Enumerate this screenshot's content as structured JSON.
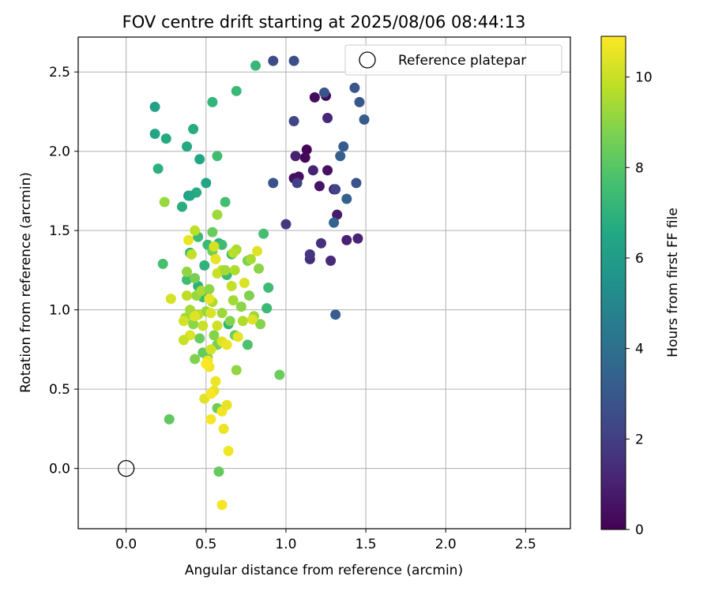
{
  "chart_data": {
    "type": "scatter",
    "title": "FOV centre drift starting at 2025/08/06 08:44:13",
    "xlabel": "Angular distance from reference (arcmin)",
    "ylabel": "Rotation from reference (arcmin)",
    "xlim": [
      -0.3,
      2.78
    ],
    "ylim": [
      -0.38,
      2.72
    ],
    "xticks": [
      0.0,
      0.5,
      1.0,
      1.5,
      2.0,
      2.5
    ],
    "yticks": [
      0.0,
      0.5,
      1.0,
      1.5,
      2.0,
      2.5
    ],
    "xtick_labels": [
      "0.0",
      "0.5",
      "1.0",
      "1.5",
      "2.0",
      "2.5"
    ],
    "ytick_labels": [
      "0.0",
      "0.5",
      "1.0",
      "1.5",
      "2.0",
      "2.5"
    ],
    "grid": true,
    "legend": {
      "position": "top-right",
      "entries": [
        "Reference platepar"
      ]
    },
    "reference_point": {
      "label": "Reference platepar",
      "x": 0.0,
      "y": 0.0
    },
    "colorbar": {
      "label": "Hours from first FF file",
      "min": 0,
      "max": 10.9,
      "ticks": [
        0,
        2,
        4,
        6,
        8,
        10
      ],
      "tick_labels": [
        "0",
        "2",
        "4",
        "6",
        "8",
        "10"
      ],
      "colormap": "viridis"
    },
    "points": [
      {
        "x": 1.13,
        "y": 2.01,
        "h": 0.1
      },
      {
        "x": 1.12,
        "y": 1.96,
        "h": 0.2
      },
      {
        "x": 1.18,
        "y": 2.34,
        "h": 0.3
      },
      {
        "x": 1.25,
        "y": 2.35,
        "h": 0.2
      },
      {
        "x": 1.08,
        "y": 1.84,
        "h": 0.4
      },
      {
        "x": 1.05,
        "y": 1.83,
        "h": 0.5
      },
      {
        "x": 1.21,
        "y": 1.78,
        "h": 0.6
      },
      {
        "x": 1.26,
        "y": 1.88,
        "h": 0.5
      },
      {
        "x": 1.3,
        "y": 1.76,
        "h": 0.7
      },
      {
        "x": 1.32,
        "y": 1.6,
        "h": 0.8
      },
      {
        "x": 1.06,
        "y": 1.97,
        "h": 1.0
      },
      {
        "x": 1.17,
        "y": 1.88,
        "h": 1.1
      },
      {
        "x": 1.26,
        "y": 2.21,
        "h": 1.2
      },
      {
        "x": 1.38,
        "y": 1.44,
        "h": 1.0
      },
      {
        "x": 1.45,
        "y": 1.45,
        "h": 1.1
      },
      {
        "x": 1.28,
        "y": 1.31,
        "h": 1.3
      },
      {
        "x": 1.15,
        "y": 1.32,
        "h": 1.4
      },
      {
        "x": 1.22,
        "y": 1.42,
        "h": 1.5
      },
      {
        "x": 1.15,
        "y": 1.35,
        "h": 1.7
      },
      {
        "x": 1.0,
        "y": 1.54,
        "h": 1.8
      },
      {
        "x": 1.07,
        "y": 1.8,
        "h": 2.0
      },
      {
        "x": 1.31,
        "y": 1.76,
        "h": 2.2
      },
      {
        "x": 1.05,
        "y": 2.19,
        "h": 2.3
      },
      {
        "x": 0.92,
        "y": 2.57,
        "h": 2.5
      },
      {
        "x": 1.05,
        "y": 2.57,
        "h": 2.6
      },
      {
        "x": 0.92,
        "y": 1.8,
        "h": 2.7
      },
      {
        "x": 1.44,
        "y": 1.8,
        "h": 2.8
      },
      {
        "x": 1.24,
        "y": 2.37,
        "h": 2.9
      },
      {
        "x": 1.43,
        "y": 2.4,
        "h": 2.9
      },
      {
        "x": 1.46,
        "y": 2.31,
        "h": 3.0
      },
      {
        "x": 1.49,
        "y": 2.2,
        "h": 3.1
      },
      {
        "x": 1.36,
        "y": 2.03,
        "h": 3.2
      },
      {
        "x": 1.34,
        "y": 1.97,
        "h": 3.3
      },
      {
        "x": 1.38,
        "y": 1.7,
        "h": 3.4
      },
      {
        "x": 1.3,
        "y": 1.55,
        "h": 3.5
      },
      {
        "x": 1.31,
        "y": 0.97,
        "h": 3.2
      },
      {
        "x": 0.39,
        "y": 1.72,
        "h": 5.8
      },
      {
        "x": 0.18,
        "y": 2.28,
        "h": 6.2
      },
      {
        "x": 0.18,
        "y": 2.11,
        "h": 6.4
      },
      {
        "x": 0.25,
        "y": 2.08,
        "h": 6.6
      },
      {
        "x": 0.2,
        "y": 1.89,
        "h": 6.9
      },
      {
        "x": 0.42,
        "y": 2.14,
        "h": 6.7
      },
      {
        "x": 0.38,
        "y": 2.03,
        "h": 6.6
      },
      {
        "x": 0.46,
        "y": 1.95,
        "h": 6.5
      },
      {
        "x": 0.5,
        "y": 1.8,
        "h": 6.4
      },
      {
        "x": 0.44,
        "y": 1.74,
        "h": 6.7
      },
      {
        "x": 0.4,
        "y": 1.72,
        "h": 6.5
      },
      {
        "x": 0.35,
        "y": 1.65,
        "h": 6.8
      },
      {
        "x": 0.54,
        "y": 2.31,
        "h": 7.1
      },
      {
        "x": 0.69,
        "y": 2.38,
        "h": 7.3
      },
      {
        "x": 0.81,
        "y": 2.54,
        "h": 7.2
      },
      {
        "x": 0.57,
        "y": 1.97,
        "h": 7.5
      },
      {
        "x": 0.62,
        "y": 1.68,
        "h": 7.6
      },
      {
        "x": 0.45,
        "y": 1.46,
        "h": 7.4
      },
      {
        "x": 0.51,
        "y": 1.41,
        "h": 7.3
      },
      {
        "x": 0.58,
        "y": 1.42,
        "h": 7.0
      },
      {
        "x": 0.6,
        "y": 1.41,
        "h": 7.5
      },
      {
        "x": 0.66,
        "y": 1.35,
        "h": 7.6
      },
      {
        "x": 0.4,
        "y": 1.36,
        "h": 7.1
      },
      {
        "x": 0.23,
        "y": 1.29,
        "h": 7.7
      },
      {
        "x": 0.49,
        "y": 1.28,
        "h": 7.0
      },
      {
        "x": 0.63,
        "y": 1.22,
        "h": 7.3
      },
      {
        "x": 0.38,
        "y": 1.19,
        "h": 7.5
      },
      {
        "x": 0.45,
        "y": 1.15,
        "h": 6.9
      },
      {
        "x": 0.86,
        "y": 1.48,
        "h": 7.6
      },
      {
        "x": 0.89,
        "y": 1.14,
        "h": 7.5
      },
      {
        "x": 0.88,
        "y": 1.01,
        "h": 7.3
      },
      {
        "x": 0.64,
        "y": 0.91,
        "h": 7.0
      },
      {
        "x": 0.48,
        "y": 1.08,
        "h": 7.2
      },
      {
        "x": 0.76,
        "y": 0.78,
        "h": 7.8
      },
      {
        "x": 0.54,
        "y": 1.37,
        "h": 8.6
      },
      {
        "x": 0.54,
        "y": 1.49,
        "h": 8.4
      },
      {
        "x": 0.57,
        "y": 1.6,
        "h": 9.3
      },
      {
        "x": 0.24,
        "y": 1.68,
        "h": 9.2
      },
      {
        "x": 0.27,
        "y": 0.31,
        "h": 8.2
      },
      {
        "x": 0.58,
        "y": -0.02,
        "h": 8.3
      },
      {
        "x": 0.57,
        "y": 0.38,
        "h": 8.5
      },
      {
        "x": 0.96,
        "y": 0.59,
        "h": 8.4
      },
      {
        "x": 0.69,
        "y": 0.62,
        "h": 9.1
      },
      {
        "x": 0.51,
        "y": 0.7,
        "h": 8.7
      },
      {
        "x": 0.48,
        "y": 0.73,
        "h": 8.3
      },
      {
        "x": 0.43,
        "y": 0.69,
        "h": 8.8
      },
      {
        "x": 0.46,
        "y": 0.82,
        "h": 8.4
      },
      {
        "x": 0.55,
        "y": 0.84,
        "h": 8.9
      },
      {
        "x": 0.57,
        "y": 0.78,
        "h": 8.6
      },
      {
        "x": 0.68,
        "y": 0.84,
        "h": 8.5
      },
      {
        "x": 0.65,
        "y": 0.93,
        "h": 8.9
      },
      {
        "x": 0.42,
        "y": 0.91,
        "h": 9.0
      },
      {
        "x": 0.37,
        "y": 0.95,
        "h": 9.3
      },
      {
        "x": 0.4,
        "y": 1.0,
        "h": 9.4
      },
      {
        "x": 0.44,
        "y": 1.09,
        "h": 9.2
      },
      {
        "x": 0.38,
        "y": 1.24,
        "h": 9.1
      },
      {
        "x": 0.43,
        "y": 1.2,
        "h": 8.6
      },
      {
        "x": 0.47,
        "y": 1.12,
        "h": 9.5
      },
      {
        "x": 0.52,
        "y": 1.13,
        "h": 9.0
      },
      {
        "x": 0.54,
        "y": 1.05,
        "h": 9.6
      },
      {
        "x": 0.5,
        "y": 0.99,
        "h": 9.2
      },
      {
        "x": 0.45,
        "y": 0.97,
        "h": 9.7
      },
      {
        "x": 0.6,
        "y": 0.98,
        "h": 9.3
      },
      {
        "x": 0.67,
        "y": 1.06,
        "h": 9.4
      },
      {
        "x": 0.72,
        "y": 1.02,
        "h": 9.0
      },
      {
        "x": 0.73,
        "y": 0.93,
        "h": 9.6
      },
      {
        "x": 0.8,
        "y": 0.96,
        "h": 9.2
      },
      {
        "x": 0.84,
        "y": 0.91,
        "h": 8.9
      },
      {
        "x": 0.77,
        "y": 1.09,
        "h": 8.8
      },
      {
        "x": 0.83,
        "y": 1.26,
        "h": 9.0
      },
      {
        "x": 0.76,
        "y": 1.31,
        "h": 8.7
      },
      {
        "x": 0.78,
        "y": 1.32,
        "h": 9.5
      },
      {
        "x": 0.68,
        "y": 1.25,
        "h": 9.6
      },
      {
        "x": 0.66,
        "y": 1.15,
        "h": 9.9
      },
      {
        "x": 0.74,
        "y": 1.17,
        "h": 10.3
      },
      {
        "x": 0.6,
        "y": 1.25,
        "h": 9.8
      },
      {
        "x": 0.57,
        "y": 1.23,
        "h": 10.0
      },
      {
        "x": 0.62,
        "y": 1.25,
        "h": 9.4
      },
      {
        "x": 0.56,
        "y": 1.32,
        "h": 10.5
      },
      {
        "x": 0.55,
        "y": 1.4,
        "h": 10.2
      },
      {
        "x": 0.43,
        "y": 1.5,
        "h": 9.8
      },
      {
        "x": 0.41,
        "y": 1.35,
        "h": 9.9
      },
      {
        "x": 0.39,
        "y": 1.44,
        "h": 10.6
      },
      {
        "x": 0.69,
        "y": 1.38,
        "h": 9.5
      },
      {
        "x": 0.67,
        "y": 1.36,
        "h": 9.7
      },
      {
        "x": 0.82,
        "y": 1.37,
        "h": 10.4
      },
      {
        "x": 0.28,
        "y": 1.07,
        "h": 10.2
      },
      {
        "x": 0.38,
        "y": 1.09,
        "h": 9.8
      },
      {
        "x": 0.52,
        "y": 1.07,
        "h": 10.5
      },
      {
        "x": 0.53,
        "y": 0.98,
        "h": 10.3
      },
      {
        "x": 0.57,
        "y": 0.9,
        "h": 10.1
      },
      {
        "x": 0.48,
        "y": 0.9,
        "h": 10.0
      },
      {
        "x": 0.43,
        "y": 0.96,
        "h": 10.4
      },
      {
        "x": 0.36,
        "y": 0.93,
        "h": 10.2
      },
      {
        "x": 0.4,
        "y": 0.84,
        "h": 10.3
      },
      {
        "x": 0.36,
        "y": 0.81,
        "h": 10.0
      },
      {
        "x": 0.49,
        "y": 0.44,
        "h": 10.4
      },
      {
        "x": 0.51,
        "y": 0.68,
        "h": 10.6
      },
      {
        "x": 0.52,
        "y": 0.64,
        "h": 10.7
      },
      {
        "x": 0.55,
        "y": 0.49,
        "h": 10.5
      },
      {
        "x": 0.53,
        "y": 0.47,
        "h": 10.8
      },
      {
        "x": 0.56,
        "y": 0.55,
        "h": 10.6
      },
      {
        "x": 0.6,
        "y": 0.36,
        "h": 10.7
      },
      {
        "x": 0.63,
        "y": 0.4,
        "h": 10.5
      },
      {
        "x": 0.53,
        "y": 0.31,
        "h": 10.8
      },
      {
        "x": 0.61,
        "y": 0.25,
        "h": 10.6
      },
      {
        "x": 0.64,
        "y": 0.11,
        "h": 10.7
      },
      {
        "x": 0.6,
        "y": -0.23,
        "h": 10.8
      },
      {
        "x": 0.6,
        "y": 0.8,
        "h": 10.4
      },
      {
        "x": 0.63,
        "y": 0.78,
        "h": 10.6
      },
      {
        "x": 0.7,
        "y": 0.83,
        "h": 10.5
      },
      {
        "x": 0.79,
        "y": 0.94,
        "h": 10.3
      },
      {
        "x": 0.53,
        "y": 0.75,
        "h": 10.2
      },
      {
        "x": 0.5,
        "y": 0.66,
        "h": 10.9
      }
    ]
  }
}
